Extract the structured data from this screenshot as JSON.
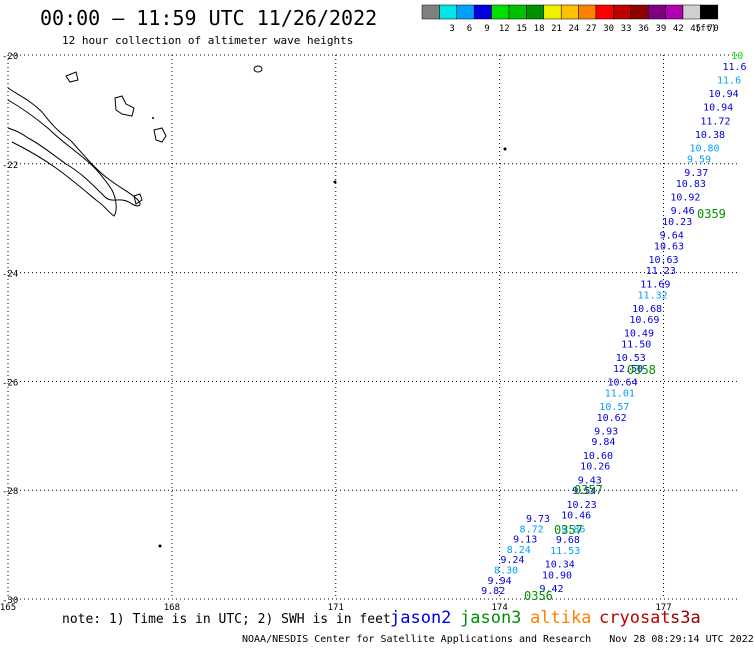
{
  "header": {
    "title": "00:00 – 11:59 UTC 11/26/2022",
    "subtitle": "12 hour collection of altimeter wave heights"
  },
  "colorbar": {
    "unit": "(ft)",
    "swatches": [
      {
        "color": "#808080",
        "label": ""
      },
      {
        "color": "#00e5e5",
        "label": "3"
      },
      {
        "color": "#00a0ff",
        "label": "6"
      },
      {
        "color": "#0000e0",
        "label": "9"
      },
      {
        "color": "#00e000",
        "label": "12"
      },
      {
        "color": "#00c000",
        "label": "15"
      },
      {
        "color": "#009000",
        "label": "18"
      },
      {
        "color": "#f0f000",
        "label": "21"
      },
      {
        "color": "#ffc000",
        "label": "24"
      },
      {
        "color": "#ff8000",
        "label": "27"
      },
      {
        "color": "#ff0000",
        "label": "30"
      },
      {
        "color": "#c00000",
        "label": "33"
      },
      {
        "color": "#900000",
        "label": "36"
      },
      {
        "color": "#800080",
        "label": "39"
      },
      {
        "color": "#b000b0",
        "label": "42"
      },
      {
        "color": "#d0d0d0",
        "label": "45"
      },
      {
        "color": "#000000",
        "label": "70"
      }
    ]
  },
  "map": {
    "lat_labels": [
      "-20",
      "-22",
      "-24",
      "-26",
      "-28",
      "-30"
    ],
    "lon_labels": [
      "165",
      "168",
      "171",
      "174",
      "177"
    ],
    "lat_range": [
      -30,
      -20
    ],
    "lon_range": [
      165,
      178.4
    ],
    "swh_points": [
      {
        "lat": -20.0,
        "lon": 178.35,
        "value": "10",
        "color": "#00e000"
      },
      {
        "lat": -20.2,
        "lon": 178.3,
        "value": "11.6",
        "color": "#0000e0"
      },
      {
        "lat": -20.45,
        "lon": 178.2,
        "value": "11.6",
        "color": "#00a0ff"
      },
      {
        "lat": -20.7,
        "lon": 178.1,
        "value": "10.94",
        "color": "#0000e0"
      },
      {
        "lat": -20.95,
        "lon": 178.0,
        "value": "10.94",
        "color": "#0000e0"
      },
      {
        "lat": -21.2,
        "lon": 177.95,
        "value": "11.72",
        "color": "#0000e0"
      },
      {
        "lat": -21.45,
        "lon": 177.85,
        "value": "10.38",
        "color": "#0000e0"
      },
      {
        "lat": -21.7,
        "lon": 177.75,
        "value": "10.80",
        "color": "#00a0ff"
      },
      {
        "lat": -21.9,
        "lon": 177.65,
        "value": "9.59",
        "color": "#00a0ff"
      },
      {
        "lat": -22.15,
        "lon": 177.6,
        "value": "9.37",
        "color": "#0000e0"
      },
      {
        "lat": -22.35,
        "lon": 177.5,
        "value": "10.83",
        "color": "#0000e0"
      },
      {
        "lat": -22.6,
        "lon": 177.4,
        "value": "10.92",
        "color": "#0000e0"
      },
      {
        "lat": -22.85,
        "lon": 177.35,
        "value": "9.46",
        "color": "#0000e0"
      },
      {
        "lat": -23.05,
        "lon": 177.25,
        "value": "10.23",
        "color": "#0000e0"
      },
      {
        "lat": -23.3,
        "lon": 177.15,
        "value": "9.64",
        "color": "#0000e0"
      },
      {
        "lat": -23.5,
        "lon": 177.1,
        "value": "10.63",
        "color": "#0000e0"
      },
      {
        "lat": -23.75,
        "lon": 177.0,
        "value": "10.63",
        "color": "#0000e0"
      },
      {
        "lat": -23.95,
        "lon": 176.95,
        "value": "11.23",
        "color": "#0000e0"
      },
      {
        "lat": -24.2,
        "lon": 176.85,
        "value": "11.69",
        "color": "#0000e0"
      },
      {
        "lat": -24.4,
        "lon": 176.8,
        "value": "11.32",
        "color": "#00a0ff"
      },
      {
        "lat": -24.65,
        "lon": 176.7,
        "value": "10.68",
        "color": "#0000e0"
      },
      {
        "lat": -24.85,
        "lon": 176.65,
        "value": "10.69",
        "color": "#0000e0"
      },
      {
        "lat": -25.1,
        "lon": 176.55,
        "value": "10.49",
        "color": "#0000e0"
      },
      {
        "lat": -25.3,
        "lon": 176.5,
        "value": "11.50",
        "color": "#0000e0"
      },
      {
        "lat": -25.55,
        "lon": 176.4,
        "value": "10.53",
        "color": "#0000e0"
      },
      {
        "lat": -25.75,
        "lon": 176.35,
        "value": "12.50",
        "color": "#0000e0"
      },
      {
        "lat": -26.0,
        "lon": 176.25,
        "value": "10.64",
        "color": "#0000e0"
      },
      {
        "lat": -26.2,
        "lon": 176.2,
        "value": "11.01",
        "color": "#00a0ff"
      },
      {
        "lat": -26.45,
        "lon": 176.1,
        "value": "10.57",
        "color": "#00a0ff"
      },
      {
        "lat": -26.65,
        "lon": 176.05,
        "value": "10.62",
        "color": "#0000e0"
      },
      {
        "lat": -26.9,
        "lon": 175.95,
        "value": "9.93",
        "color": "#0000e0"
      },
      {
        "lat": -27.1,
        "lon": 175.9,
        "value": "9.84",
        "color": "#0000e0"
      },
      {
        "lat": -27.35,
        "lon": 175.8,
        "value": "10.60",
        "color": "#0000e0"
      },
      {
        "lat": -27.55,
        "lon": 175.75,
        "value": "10.26",
        "color": "#0000e0"
      },
      {
        "lat": -27.8,
        "lon": 175.65,
        "value": "9.43",
        "color": "#0000e0"
      },
      {
        "lat": -28.0,
        "lon": 175.55,
        "value": "9.54",
        "color": "#0000e0"
      },
      {
        "lat": -28.25,
        "lon": 175.5,
        "value": "10.23",
        "color": "#0000e0"
      },
      {
        "lat": -28.45,
        "lon": 175.4,
        "value": "10.46",
        "color": "#0000e0"
      },
      {
        "lat": -28.7,
        "lon": 175.35,
        "value": "9.86",
        "color": "#00a0ff"
      },
      {
        "lat": -28.9,
        "lon": 175.25,
        "value": "9.68",
        "color": "#0000e0"
      },
      {
        "lat": -29.1,
        "lon": 175.2,
        "value": "11.53",
        "color": "#00a0ff"
      },
      {
        "lat": -29.35,
        "lon": 175.1,
        "value": "10.34",
        "color": "#0000e0"
      },
      {
        "lat": -29.55,
        "lon": 175.05,
        "value": "10.90",
        "color": "#0000e0"
      },
      {
        "lat": -29.8,
        "lon": 174.95,
        "value": "9.42",
        "color": "#0000e0"
      }
    ],
    "track_lower": [
      {
        "value": "9.73",
        "color": "#0000e0"
      },
      {
        "value": "8.72",
        "color": "#00a0ff"
      },
      {
        "value": "9.13",
        "color": "#0000e0"
      },
      {
        "value": "8.24",
        "color": "#00a0ff"
      },
      {
        "value": "9.24",
        "color": "#0000e0"
      },
      {
        "value": "8.30",
        "color": "#00a0ff"
      },
      {
        "value": "9.94",
        "color": "#0000e0"
      },
      {
        "value": "9.82",
        "color": "#0000e0"
      }
    ],
    "time_labels": [
      {
        "value": "0359",
        "color": "#009000"
      },
      {
        "value": "0358",
        "color": "#009000"
      },
      {
        "value": "0357",
        "color": "#009000"
      },
      {
        "value": "0357",
        "color": "#009000"
      },
      {
        "value": "0356",
        "color": "#009000"
      }
    ]
  },
  "footer": {
    "note": "note: 1) Time is in UTC; 2) SWH is in feet",
    "satellites": [
      {
        "name": "jason2",
        "color": "#0000e0"
      },
      {
        "name": "jason3",
        "color": "#009000"
      },
      {
        "name": "altika",
        "color": "#ff8000"
      },
      {
        "name": "cryosat",
        "color": "#c00000"
      },
      {
        "name": "s3a",
        "color": "#900000"
      }
    ],
    "credit": "NOAA/NESDIS Center for Satellite Applications and Research",
    "generated": "Nov 28 08:29:14 UTC 2022"
  }
}
